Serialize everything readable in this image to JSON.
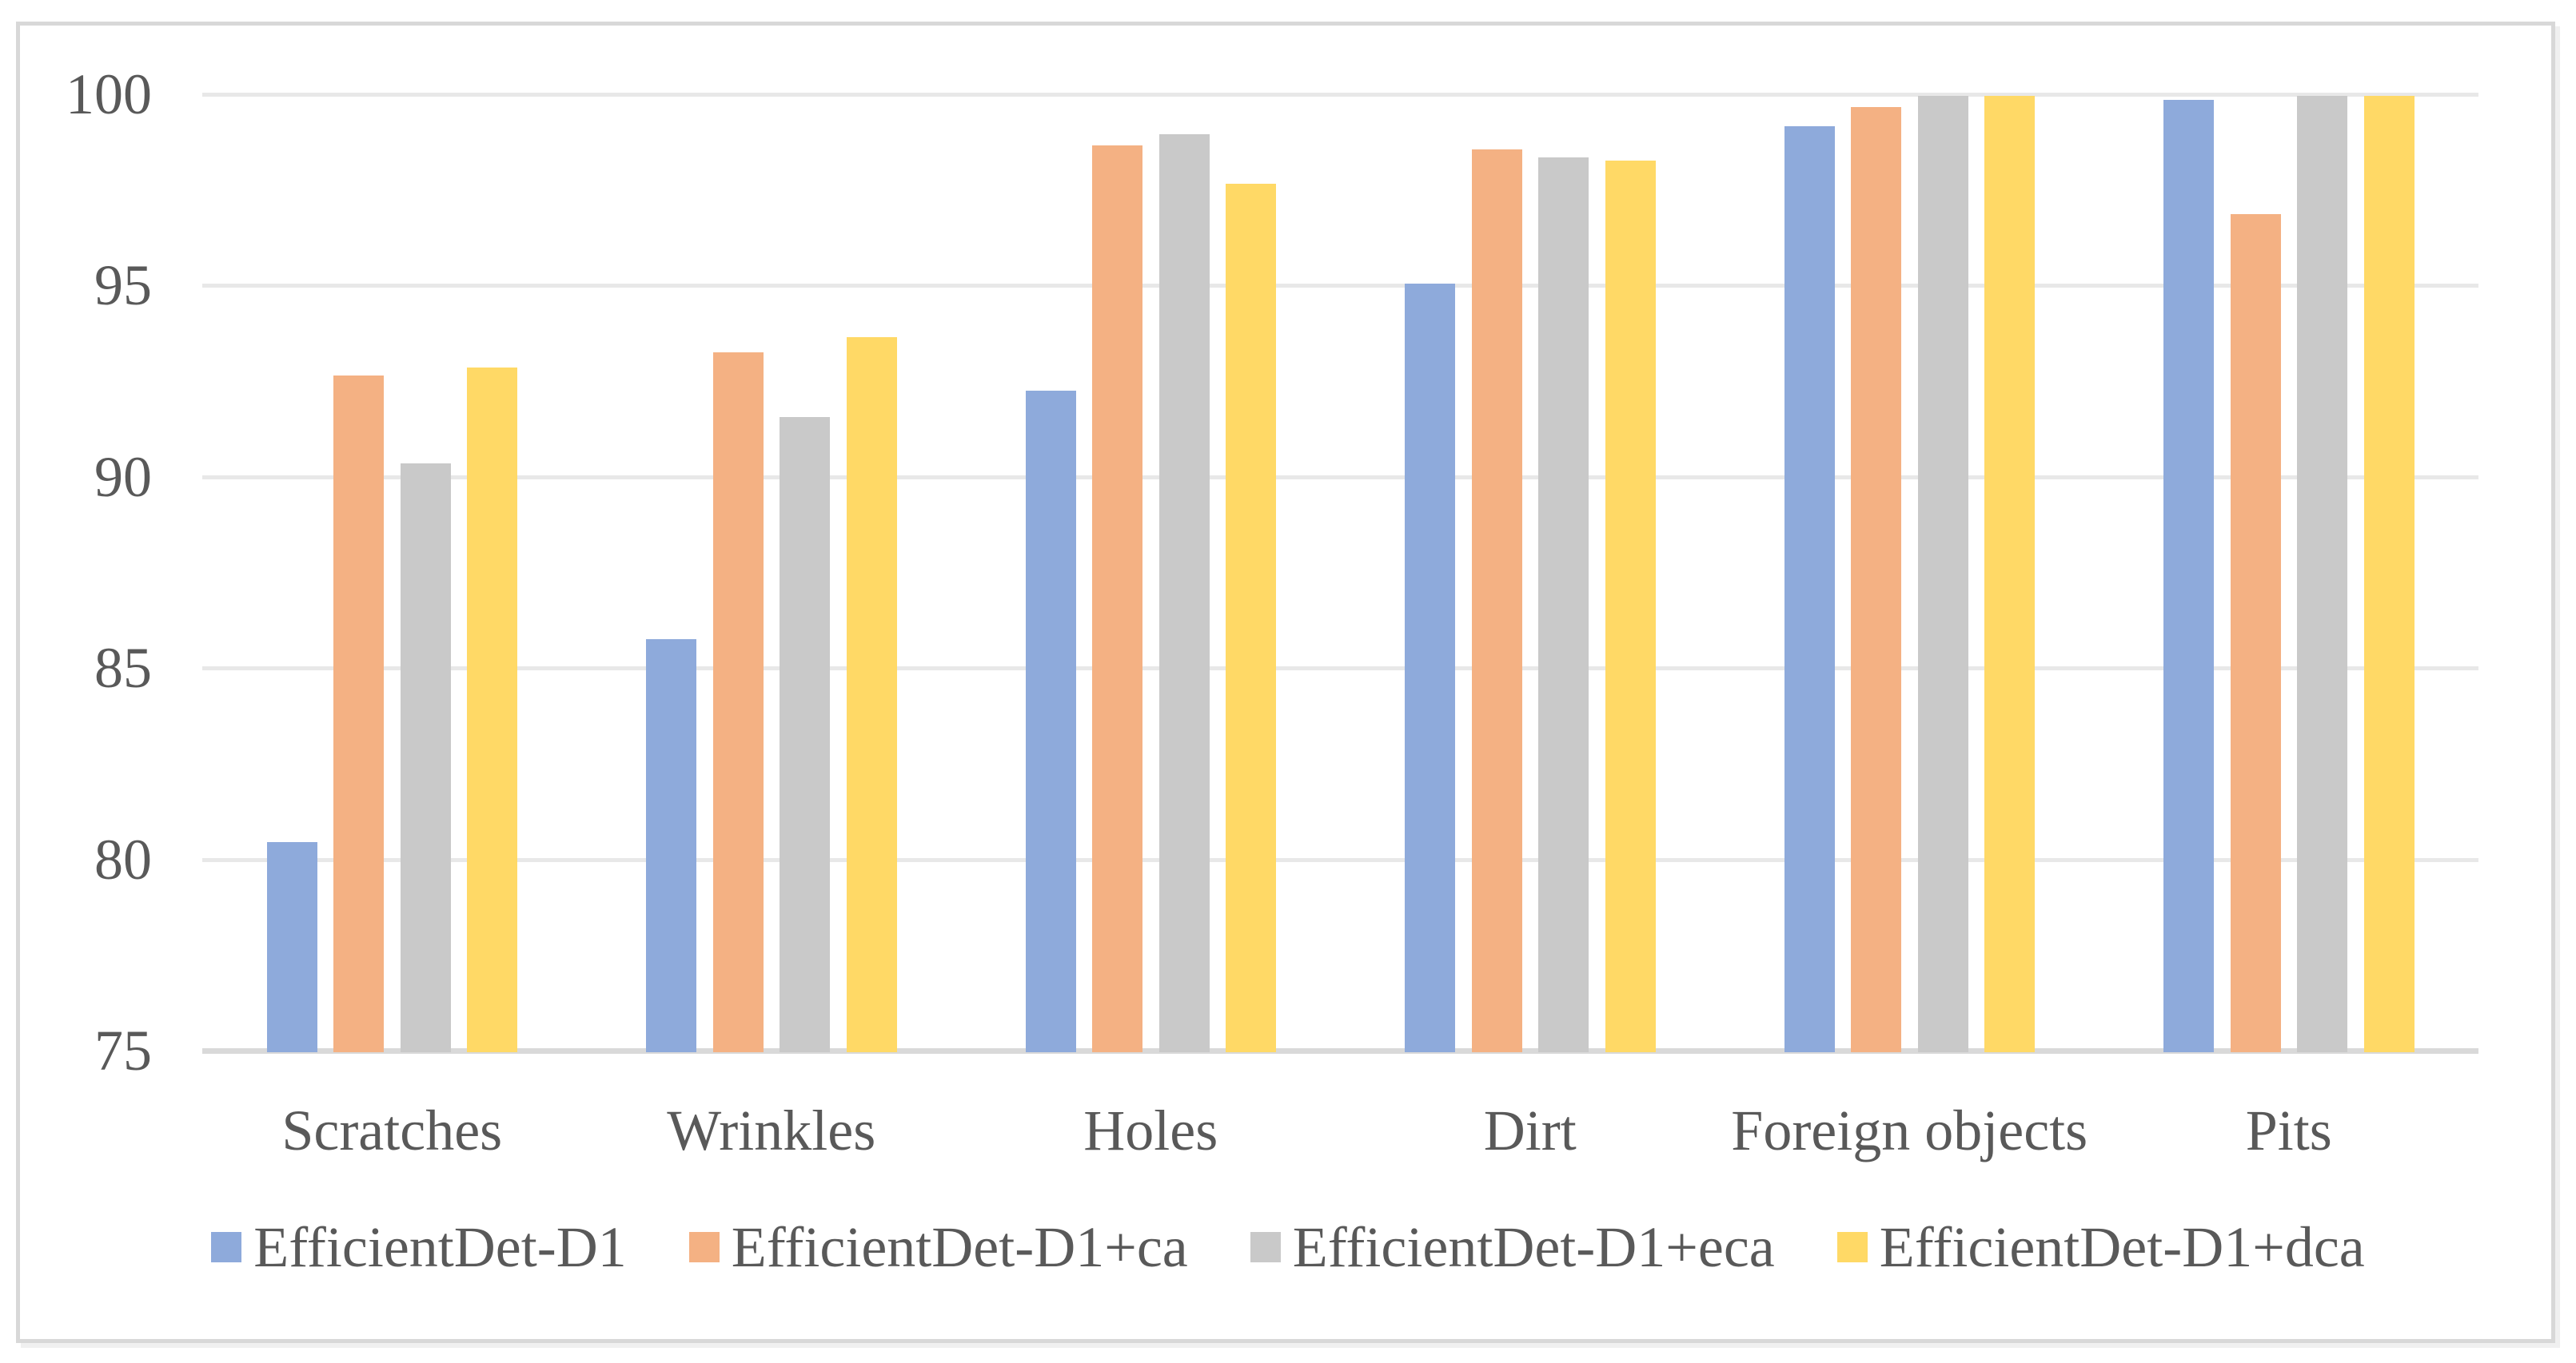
{
  "chart_data": {
    "type": "bar",
    "title": "",
    "xlabel": "",
    "ylabel": "",
    "categories": [
      "Scratches",
      "Wrinkles",
      "Holes",
      "Dirt",
      "Foreign objects",
      "Pits"
    ],
    "series": [
      {
        "name": "EfficientDet-D1",
        "color": "#8EAADB",
        "values": [
          80.5,
          85.8,
          92.3,
          95.1,
          99.2,
          99.9
        ]
      },
      {
        "name": "EfficientDet-D1+ca",
        "color": "#F4B183",
        "values": [
          92.7,
          93.3,
          98.7,
          98.6,
          99.7,
          96.9
        ]
      },
      {
        "name": "EfficientDet-D1+eca",
        "color": "#C9C9C9",
        "values": [
          90.4,
          91.6,
          99.0,
          98.4,
          100,
          100
        ]
      },
      {
        "name": "EfficientDet-D1+dca",
        "color": "#FFD966",
        "values": [
          92.9,
          93.7,
          97.7,
          98.3,
          100,
          100
        ]
      }
    ],
    "ylim": [
      75,
      100
    ],
    "yticks": [
      75,
      80,
      85,
      90,
      95,
      100
    ],
    "grid": true,
    "legend_position": "bottom"
  },
  "styles": {
    "text_color": "#595959",
    "gridline_color": "#E8E8E8",
    "axis_color": "#D9D9D9",
    "figure_border_color": "#D8D8D8",
    "background": "#FFFFFF"
  }
}
